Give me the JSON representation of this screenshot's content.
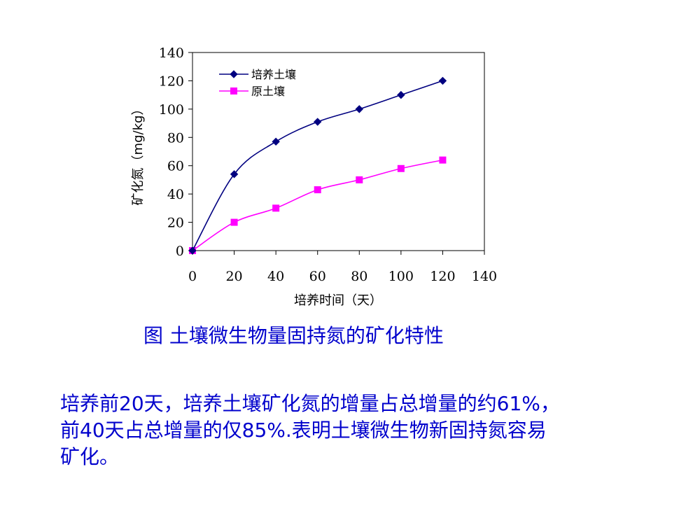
{
  "chart_data": {
    "type": "line",
    "xlabel": "培养时间（天）",
    "ylabel": "矿化氮（mg/kg）",
    "xlim": [
      0,
      140
    ],
    "ylim": [
      0,
      140
    ],
    "xticks": [
      0,
      20,
      40,
      60,
      80,
      100,
      120,
      140
    ],
    "yticks": [
      0,
      20,
      40,
      60,
      80,
      100,
      120,
      140
    ],
    "grid": false,
    "legend_position": "top-left",
    "series": [
      {
        "name": "培养土壤",
        "color": "#000080",
        "marker": "diamond",
        "x": [
          0,
          20,
          40,
          60,
          80,
          100,
          120
        ],
        "y": [
          0,
          54,
          77,
          91,
          100,
          110,
          120
        ]
      },
      {
        "name": "原土壤",
        "color": "#ff00ff",
        "marker": "square",
        "x": [
          0,
          20,
          40,
          60,
          80,
          100,
          120
        ],
        "y": [
          0,
          20,
          30,
          43,
          50,
          58,
          64
        ]
      }
    ]
  },
  "caption": "图  土壤微生物量固持氮的矿化特性",
  "paragraph": {
    "line1": "培养前20天，培养土壤矿化氮的增量占总增量的约61%，",
    "line2": "前40天占总增量的仅85%.表明土壤微生物新固持氮容易",
    "line3": "矿化。"
  }
}
